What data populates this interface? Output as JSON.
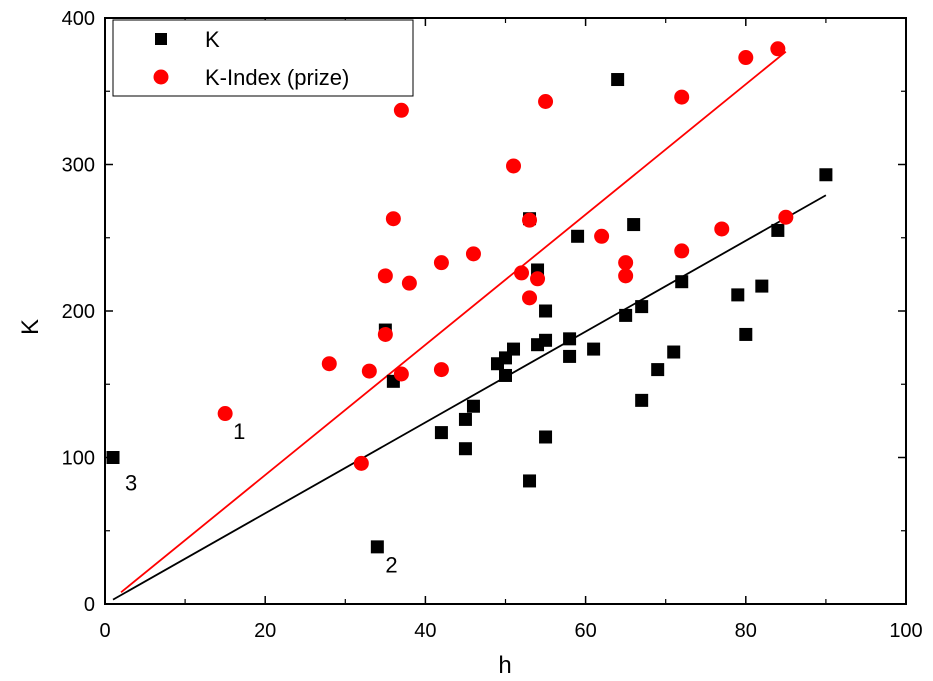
{
  "chart_data": {
    "type": "scatter",
    "xlabel": "h",
    "ylabel": "K",
    "xlim": [
      0,
      100
    ],
    "ylim": [
      0,
      400
    ],
    "xticks": [
      0,
      20,
      40,
      60,
      80,
      100
    ],
    "yticks": [
      0,
      100,
      200,
      300,
      400
    ],
    "grid": false,
    "legend_position": "top-left",
    "series": [
      {
        "name": "K",
        "color": "#000000",
        "marker": "square",
        "points": [
          [
            1,
            100
          ],
          [
            34,
            39
          ],
          [
            35,
            187
          ],
          [
            36,
            152
          ],
          [
            42,
            117
          ],
          [
            45,
            106
          ],
          [
            45,
            126
          ],
          [
            46,
            135
          ],
          [
            49,
            164
          ],
          [
            50,
            156
          ],
          [
            50,
            168
          ],
          [
            51,
            174
          ],
          [
            53,
            84
          ],
          [
            53,
            263
          ],
          [
            54,
            177
          ],
          [
            54,
            228
          ],
          [
            55,
            114
          ],
          [
            55,
            180
          ],
          [
            55,
            200
          ],
          [
            58,
            169
          ],
          [
            58,
            181
          ],
          [
            59,
            251
          ],
          [
            61,
            174
          ],
          [
            64,
            358
          ],
          [
            65,
            197
          ],
          [
            66,
            259
          ],
          [
            67,
            139
          ],
          [
            67,
            203
          ],
          [
            69,
            160
          ],
          [
            71,
            172
          ],
          [
            72,
            220
          ],
          [
            79,
            211
          ],
          [
            80,
            184
          ],
          [
            82,
            217
          ],
          [
            84,
            255
          ],
          [
            90,
            293
          ]
        ],
        "fit": {
          "x": [
            1,
            90
          ],
          "y": [
            3,
            279
          ]
        }
      },
      {
        "name": "K-Index (prize)",
        "color": "#ff0000",
        "marker": "circle",
        "points": [
          [
            15,
            130
          ],
          [
            28,
            164
          ],
          [
            32,
            96
          ],
          [
            33,
            159
          ],
          [
            35,
            184
          ],
          [
            35,
            224
          ],
          [
            36,
            263
          ],
          [
            37,
            157
          ],
          [
            37,
            337
          ],
          [
            38,
            219
          ],
          [
            42,
            160
          ],
          [
            42,
            233
          ],
          [
            46,
            239
          ],
          [
            51,
            299
          ],
          [
            52,
            226
          ],
          [
            53,
            209
          ],
          [
            53,
            262
          ],
          [
            54,
            222
          ],
          [
            55,
            343
          ],
          [
            62,
            251
          ],
          [
            65,
            224
          ],
          [
            65,
            233
          ],
          [
            72,
            241
          ],
          [
            72,
            346
          ],
          [
            77,
            256
          ],
          [
            80,
            373
          ],
          [
            84,
            379
          ],
          [
            85,
            264
          ]
        ],
        "fit": {
          "x": [
            2,
            85
          ],
          "y": [
            8,
            377
          ]
        }
      }
    ],
    "annotations": [
      {
        "text": "1",
        "x": 16,
        "y": 118
      },
      {
        "text": "2",
        "x": 35,
        "y": 27
      },
      {
        "text": "3",
        "x": 2.5,
        "y": 83
      }
    ]
  }
}
